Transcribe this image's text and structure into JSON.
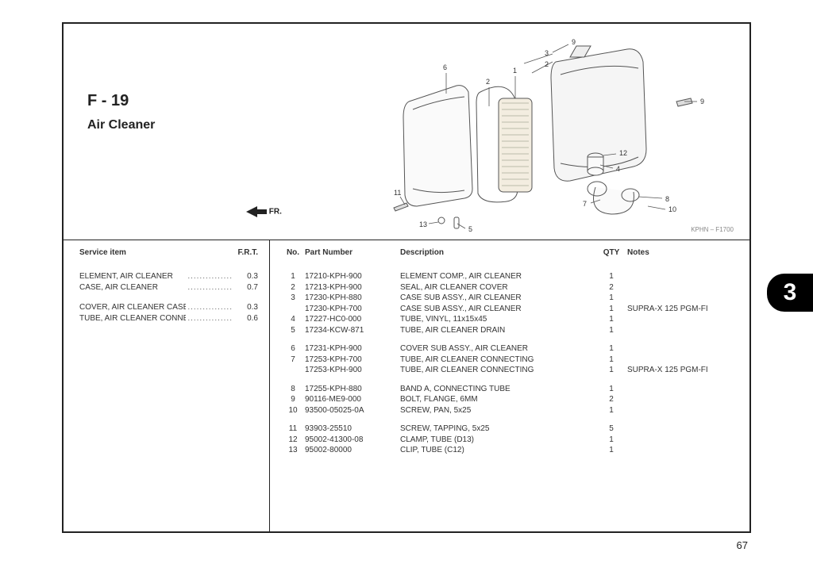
{
  "header": {
    "section_code": "F - 19",
    "section_name": "Air Cleaner",
    "fr_label": "FR.",
    "drawing_id": "KPHN – F1700"
  },
  "service": {
    "title_item": "Service item",
    "title_frt": "F.R.T.",
    "items": [
      {
        "label": "ELEMENT, AIR CLEANER",
        "frt": "0.3"
      },
      {
        "label": "CASE, AIR CLEANER",
        "frt": "0.7"
      },
      {
        "gap": true
      },
      {
        "label": "COVER, AIR CLEANER CASE",
        "frt": "0.3"
      },
      {
        "label": "TUBE, AIR CLEANER CONNECTING",
        "frt": "0.6"
      }
    ]
  },
  "parts": {
    "h_no": "No.",
    "h_pn": "Part Number",
    "h_desc": "Description",
    "h_qty": "QTY",
    "h_note": "Notes",
    "rows": [
      {
        "no": "1",
        "pn": "17210-KPH-900",
        "desc": "ELEMENT COMP., AIR CLEANER",
        "qty": "1",
        "note": ""
      },
      {
        "no": "2",
        "pn": "17213-KPH-900",
        "desc": "SEAL, AIR CLEANER COVER",
        "qty": "2",
        "note": ""
      },
      {
        "no": "3",
        "pn": "17230-KPH-880",
        "desc": "CASE SUB ASSY., AIR CLEANER",
        "qty": "1",
        "note": ""
      },
      {
        "no": "",
        "pn": "17230-KPH-700",
        "desc": "CASE SUB ASSY., AIR CLEANER",
        "qty": "1",
        "note": "SUPRA-X 125 PGM-FI"
      },
      {
        "no": "4",
        "pn": "17227-HC0-000",
        "desc": "TUBE, VINYL, 11x15x45",
        "qty": "1",
        "note": ""
      },
      {
        "no": "5",
        "pn": "17234-KCW-871",
        "desc": "TUBE, AIR CLEANER DRAIN",
        "qty": "1",
        "note": ""
      },
      {
        "gap": true
      },
      {
        "no": "6",
        "pn": "17231-KPH-900",
        "desc": "COVER SUB ASSY., AIR CLEANER",
        "qty": "1",
        "note": ""
      },
      {
        "no": "7",
        "pn": "17253-KPH-700",
        "desc": "TUBE, AIR CLEANER CONNECTING",
        "qty": "1",
        "note": ""
      },
      {
        "no": "",
        "pn": "17253-KPH-900",
        "desc": "TUBE, AIR CLEANER CONNECTING",
        "qty": "1",
        "note": "SUPRA-X 125 PGM-FI"
      },
      {
        "gap": true
      },
      {
        "no": "8",
        "pn": "17255-KPH-880",
        "desc": "BAND A, CONNECTING TUBE",
        "qty": "1",
        "note": ""
      },
      {
        "no": "9",
        "pn": "90116-ME9-000",
        "desc": "BOLT, FLANGE, 6MM",
        "qty": "2",
        "note": ""
      },
      {
        "no": "10",
        "pn": "93500-05025-0A",
        "desc": "SCREW, PAN, 5x25",
        "qty": "1",
        "note": ""
      },
      {
        "gap": true
      },
      {
        "no": "11",
        "pn": "93903-25510",
        "desc": "SCREW, TAPPING, 5x25",
        "qty": "5",
        "note": ""
      },
      {
        "no": "12",
        "pn": "95002-41300-08",
        "desc": "CLAMP, TUBE (D13)",
        "qty": "1",
        "note": ""
      },
      {
        "no": "13",
        "pn": "95002-80000",
        "desc": "CLIP, TUBE (C12)",
        "qty": "1",
        "note": ""
      }
    ]
  },
  "tab": {
    "chapter": "3"
  },
  "page": {
    "number": "67"
  },
  "callouts": [
    "1",
    "2",
    "3",
    "4",
    "5",
    "6",
    "7",
    "8",
    "9",
    "9",
    "10",
    "11",
    "12",
    "13"
  ],
  "colors": {
    "frame": "#222222",
    "text": "#333333",
    "muted": "#888888",
    "tab_bg": "#000000",
    "tab_fg": "#ffffff"
  }
}
